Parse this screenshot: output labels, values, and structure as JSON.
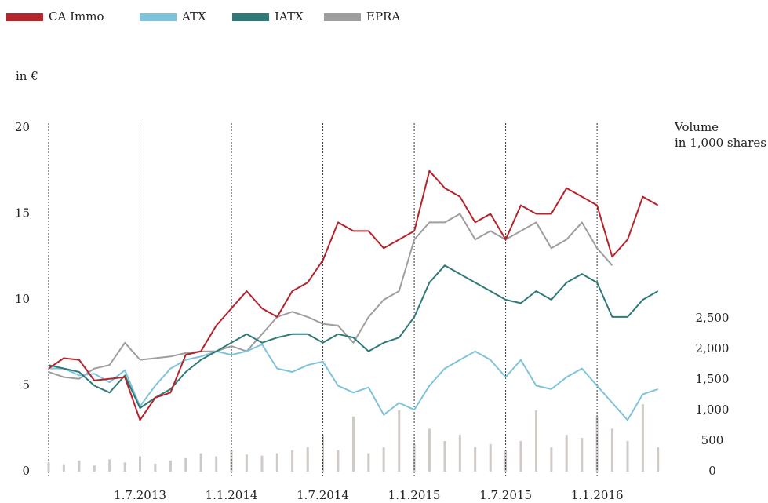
{
  "chart_data": {
    "type": "line",
    "ylabel": "in €",
    "y2label": [
      "Volume",
      "in 1,000 shares"
    ],
    "legend": "top-left",
    "x": [
      2013,
      2013.083,
      2013.167,
      2013.25,
      2013.333,
      2013.417,
      2013.5,
      2013.583,
      2013.667,
      2013.75,
      2013.833,
      2013.917,
      2014,
      2014.083,
      2014.167,
      2014.25,
      2014.333,
      2014.417,
      2014.5,
      2014.583,
      2014.667,
      2014.75,
      2014.833,
      2014.917,
      2015,
      2015.083,
      2015.167,
      2015.25,
      2015.333,
      2015.417,
      2015.5,
      2015.583,
      2015.667,
      2015.75,
      2015.833,
      2015.917,
      2016,
      2016.083,
      2016.167,
      2016.25,
      2016.333
    ],
    "xlim": [
      2013,
      2016.36
    ],
    "xticks": [
      {
        "value": 2013.5,
        "label": "1.7.2013"
      },
      {
        "value": 2014,
        "label": "1.1.2014"
      },
      {
        "value": 2014.5,
        "label": "1.7.2014"
      },
      {
        "value": 2015,
        "label": "1.1.2015"
      },
      {
        "value": 2015.5,
        "label": "1.7.2015"
      },
      {
        "value": 2016,
        "label": "1.1.2016"
      }
    ],
    "ylim": [
      0,
      20
    ],
    "yticks": [
      0,
      5,
      10,
      15,
      20
    ],
    "y2lim": [
      0,
      5615
    ],
    "y2ticks": [
      0,
      500,
      {
        "value": 1000,
        "label": "1,000"
      },
      {
        "value": 1500,
        "label": "1,500"
      },
      {
        "value": 2000,
        "label": "2,000"
      },
      {
        "value": 2500,
        "label": "2,500"
      }
    ],
    "grid": true,
    "series": [
      {
        "name": "CA Immo",
        "color": "#b5232b",
        "values": [
          6.0,
          6.6,
          6.5,
          5.3,
          5.4,
          5.5,
          3.0,
          4.3,
          4.6,
          6.8,
          7.0,
          8.5,
          9.5,
          10.5,
          9.5,
          9.0,
          10.5,
          11.0,
          12.3,
          14.5,
          14.0,
          14.0,
          13.0,
          13.5,
          14.0,
          17.5,
          16.5,
          16.0,
          14.5,
          15.0,
          13.5,
          15.5,
          15.0,
          15.0,
          16.5,
          16.0,
          15.5,
          12.5,
          13.5,
          16.0,
          15.5
        ]
      },
      {
        "name": "ATX",
        "color": "#7ec3dc",
        "values": [
          6.0,
          6.0,
          5.6,
          5.7,
          5.2,
          5.9,
          3.8,
          5.0,
          6.0,
          6.5,
          6.7,
          7.0,
          6.8,
          7.0,
          7.4,
          6.0,
          5.8,
          6.2,
          6.4,
          5.0,
          4.6,
          4.9,
          3.3,
          4.0,
          3.6,
          5.0,
          6.0,
          6.5,
          7.0,
          6.5,
          5.5,
          6.5,
          5.0,
          4.8,
          5.5,
          6.0,
          5.0,
          4.0,
          3.0,
          4.5,
          4.8
        ]
      },
      {
        "name": "IATX",
        "color": "#2f7a78",
        "values": [
          6.2,
          6.0,
          5.8,
          5.0,
          4.6,
          5.6,
          3.7,
          4.3,
          4.8,
          5.8,
          6.5,
          7.0,
          7.5,
          8.0,
          7.5,
          7.8,
          8.0,
          8.0,
          7.5,
          8.0,
          7.8,
          7.0,
          7.5,
          7.8,
          9.0,
          11.0,
          12.0,
          11.5,
          11.0,
          10.5,
          10.0,
          9.8,
          10.5,
          10.0,
          11.0,
          11.5,
          11.0,
          9.0,
          9.0,
          10.0,
          10.5
        ]
      },
      {
        "name": "EPRA",
        "color": "#9e9e9e",
        "values": [
          5.8,
          5.5,
          5.4,
          6.0,
          6.2,
          7.5,
          6.5,
          6.6,
          6.7,
          6.9,
          7.0,
          7.0,
          7.3,
          7.0,
          8.0,
          9.0,
          9.3,
          9.0,
          8.6,
          8.5,
          7.5,
          9.0,
          10.0,
          10.5,
          13.5,
          14.5,
          14.5,
          15.0,
          13.5,
          14.0,
          13.5,
          14.0,
          14.5,
          13.0,
          13.5,
          14.5,
          13.0,
          12.0,
          null,
          null,
          null
        ]
      }
    ],
    "volume": {
      "type": "bar",
      "axis": "y2",
      "color": "#cfcac5",
      "values": [
        150,
        120,
        180,
        100,
        200,
        150,
        250,
        130,
        180,
        220,
        300,
        250,
        350,
        280,
        260,
        300,
        350,
        400,
        600,
        350,
        900,
        300,
        400,
        1000,
        450,
        700,
        500,
        600,
        400,
        450,
        350,
        500,
        1000,
        400,
        600,
        550,
        900,
        700,
        500,
        1100,
        400
      ]
    }
  }
}
